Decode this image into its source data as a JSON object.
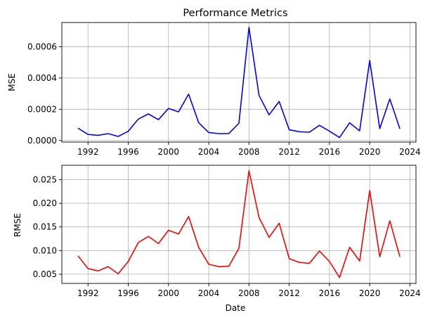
{
  "chart_data": [
    {
      "type": "line",
      "title": "Performance Metrics",
      "xlabel": "",
      "ylabel": "MSE",
      "grid": true,
      "xlim": [
        1989.4,
        2024.6
      ],
      "ylim": [
        -1e-05,
        0.000755
      ],
      "x_ticks": [
        1992,
        1996,
        2000,
        2004,
        2008,
        2012,
        2016,
        2020,
        2024
      ],
      "y_ticks": [
        0.0,
        0.0002,
        0.0004,
        0.0006
      ],
      "y_tick_labels": [
        "0.0000",
        "0.0002",
        "0.0004",
        "0.0006"
      ],
      "series": [
        {
          "color": "#0000ff",
          "x": [
            1991,
            1992,
            1993,
            1994,
            1995,
            1996,
            1997,
            1998,
            1999,
            2000,
            2001,
            2002,
            2003,
            2004,
            2005,
            2006,
            2007,
            2008,
            2009,
            2010,
            2011,
            2012,
            2013,
            2014,
            2015,
            2016,
            2017,
            2018,
            2019,
            2020,
            2021,
            2022,
            2023
          ],
          "values": [
            7.9e-05,
            3.9e-05,
            3.3e-05,
            4.4e-05,
            2.6e-05,
            5.9e-05,
            0.000137,
            0.00017,
            0.000133,
            0.000205,
            0.000183,
            0.000297,
            0.000114,
            5.1e-05,
            4.4e-05,
            4.5e-05,
            0.00011,
            0.000724,
            0.000289,
            0.000164,
            0.00025,
            6.9e-05,
            5.6e-05,
            5.3e-05,
            9.7e-05,
            6e-05,
            1.9e-05,
            0.000113,
            6.2e-05,
            0.000512,
            7.6e-05,
            0.000266,
            7.5e-05
          ]
        }
      ]
    },
    {
      "type": "line",
      "title": "",
      "xlabel": "Date",
      "ylabel": "RMSE",
      "grid": true,
      "xlim": [
        1989.4,
        2024.6
      ],
      "ylim": [
        0.00305,
        0.02805
      ],
      "x_ticks": [
        1992,
        1996,
        2000,
        2004,
        2008,
        2012,
        2016,
        2020,
        2024
      ],
      "y_ticks": [
        0.005,
        0.01,
        0.015,
        0.02,
        0.025
      ],
      "y_tick_labels": [
        "0.005",
        "0.010",
        "0.015",
        "0.020",
        "0.025"
      ],
      "series": [
        {
          "color": "#ff0000",
          "x": [
            1991,
            1992,
            1993,
            1994,
            1995,
            1996,
            1997,
            1998,
            1999,
            2000,
            2001,
            2002,
            2003,
            2004,
            2005,
            2006,
            2007,
            2008,
            2009,
            2010,
            2011,
            2012,
            2013,
            2014,
            2015,
            2016,
            2017,
            2018,
            2019,
            2020,
            2021,
            2022,
            2023
          ],
          "values": [
            0.0089,
            0.0062,
            0.0057,
            0.0066,
            0.0051,
            0.0077,
            0.0117,
            0.013,
            0.0115,
            0.0143,
            0.0135,
            0.0172,
            0.0107,
            0.0071,
            0.0066,
            0.0067,
            0.0105,
            0.0269,
            0.017,
            0.0128,
            0.0158,
            0.0083,
            0.0075,
            0.0073,
            0.0099,
            0.0077,
            0.0043,
            0.0107,
            0.0078,
            0.0227,
            0.0087,
            0.0163,
            0.0087
          ]
        }
      ]
    }
  ]
}
